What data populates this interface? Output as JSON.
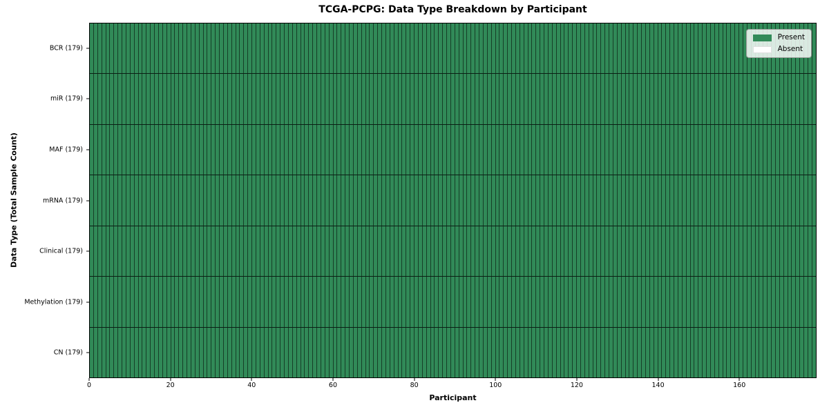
{
  "title": "TCGA-PCPG: Data Type Breakdown by Participant",
  "x_axis": {
    "label": "Participant",
    "ticks": [
      "0",
      "20",
      "40",
      "60",
      "80",
      "100",
      "120",
      "140",
      "160"
    ]
  },
  "y_axis": {
    "label": "Data Type (Total Sample Count)"
  },
  "legend": {
    "position": "upper-right",
    "items": [
      {
        "label": "Present",
        "color": "#318a58"
      },
      {
        "label": "Absent",
        "color": "#ffffff"
      }
    ]
  },
  "chart_data": {
    "type": "heatmap",
    "title": "TCGA-PCPG: Data Type Breakdown by Participant",
    "xlabel": "Participant",
    "ylabel": "Data Type (Total Sample Count)",
    "x_ticks": [
      0,
      20,
      40,
      60,
      80,
      100,
      120,
      140,
      160
    ],
    "xlim": [
      0,
      179
    ],
    "n_participants": 179,
    "categories_y": [
      "BCR (179)",
      "miR (179)",
      "MAF (179)",
      "mRNA (179)",
      "Clinical (179)",
      "Methylation (179)",
      "CN (179)"
    ],
    "rows": [
      {
        "label": "BCR (179)",
        "data_type": "BCR",
        "total_sample_count": 179,
        "present_count": 179,
        "absent_count": 0
      },
      {
        "label": "miR (179)",
        "data_type": "miR",
        "total_sample_count": 179,
        "present_count": 179,
        "absent_count": 0
      },
      {
        "label": "MAF (179)",
        "data_type": "MAF",
        "total_sample_count": 179,
        "present_count": 179,
        "absent_count": 0
      },
      {
        "label": "mRNA (179)",
        "data_type": "mRNA",
        "total_sample_count": 179,
        "present_count": 179,
        "absent_count": 0
      },
      {
        "label": "Clinical (179)",
        "data_type": "Clinical",
        "total_sample_count": 179,
        "present_count": 179,
        "absent_count": 0
      },
      {
        "label": "Methylation (179)",
        "data_type": "Methylation",
        "total_sample_count": 179,
        "present_count": 179,
        "absent_count": 0
      },
      {
        "label": "CN (179)",
        "data_type": "CN",
        "total_sample_count": 179,
        "present_count": 179,
        "absent_count": 0
      }
    ],
    "colors": {
      "present": "#318a58",
      "absent": "#ffffff",
      "gridline": "#1a1a1a",
      "background": "#ffffff"
    },
    "legend_entries": [
      "Present",
      "Absent"
    ],
    "legend_position": "upper right",
    "grid": true
  }
}
